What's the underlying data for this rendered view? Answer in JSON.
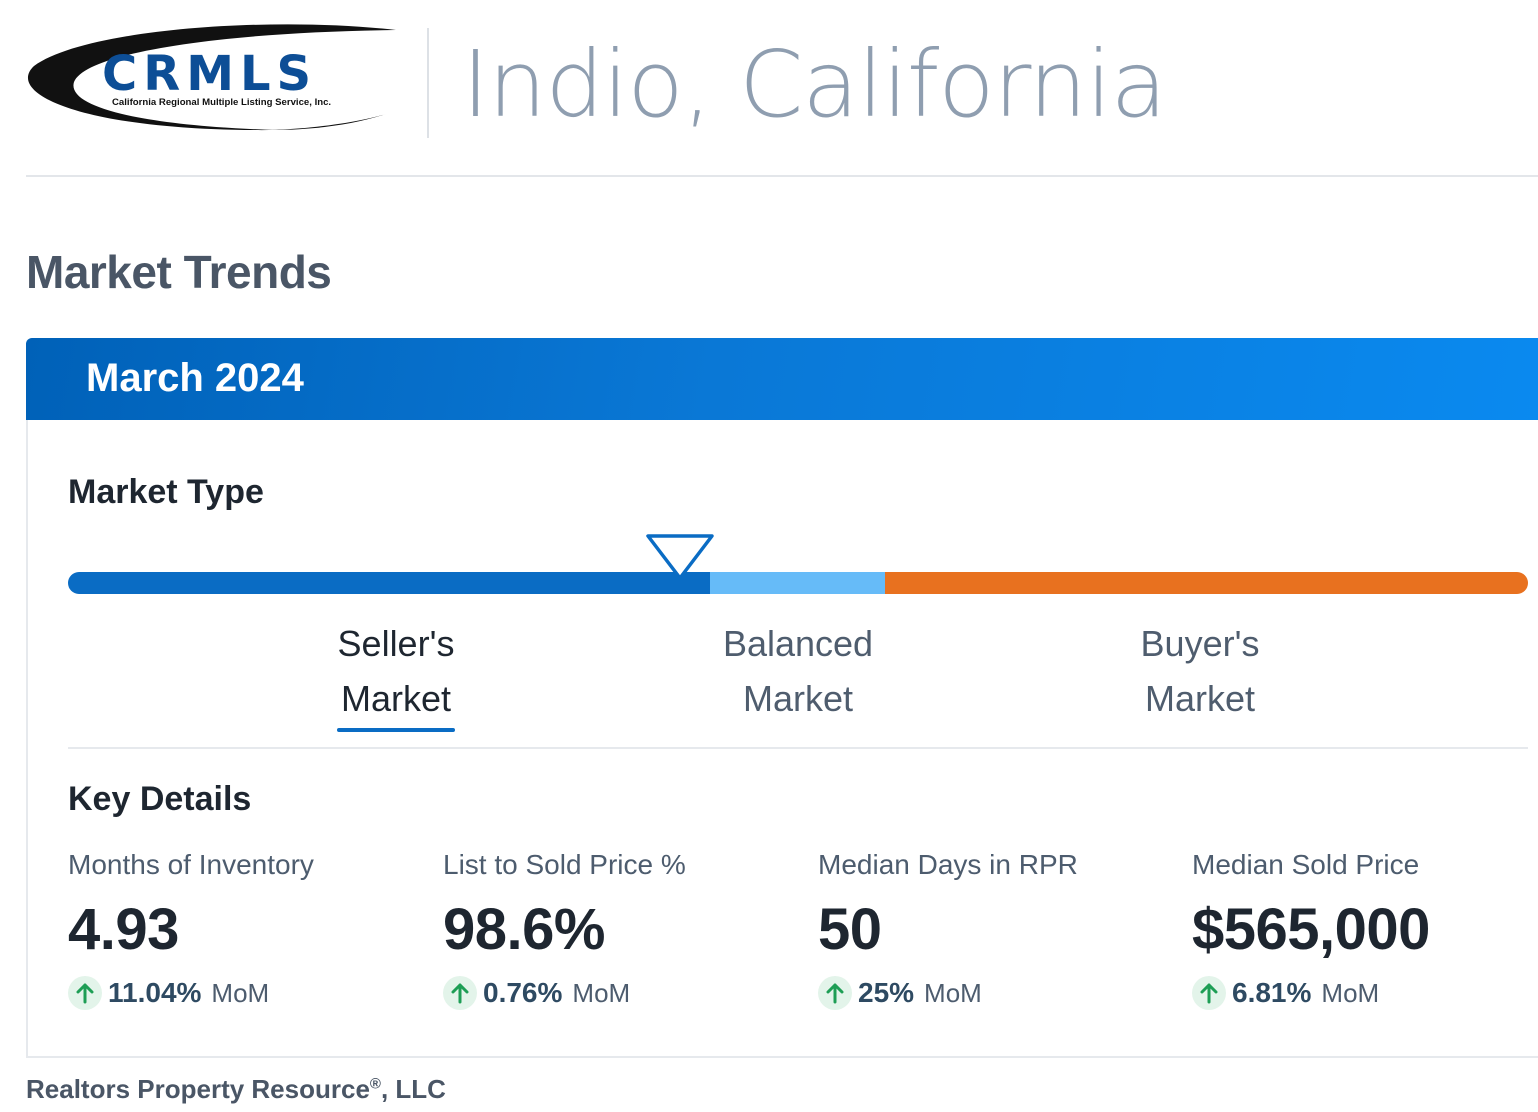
{
  "header": {
    "logo_text": "CRMLS",
    "logo_subtitle": "California Regional Multiple Listing Service, Inc.",
    "city_title": "Indio, California"
  },
  "section_title": "Market Trends",
  "card": {
    "period": "March 2024",
    "market_type": {
      "heading": "Market Type",
      "indicator_position_fraction": 0.44,
      "segments": [
        {
          "name": "Seller's Market",
          "color": "#0a6cc4"
        },
        {
          "name": "Balanced Market",
          "color": "#66bbf8"
        },
        {
          "name": "Buyer's Market",
          "color": "#e8711f"
        }
      ],
      "labels": {
        "seller_line1": "Seller's",
        "seller_line2": "Market",
        "balanced_line1": "Balanced",
        "balanced_line2": "Market",
        "buyer_line1": "Buyer's",
        "buyer_line2": "Market"
      },
      "active": "Seller's Market"
    },
    "key_details": {
      "heading": "Key Details",
      "metrics": [
        {
          "label": "Months of Inventory",
          "value": "4.93",
          "change": "11.04%",
          "unit": "MoM",
          "direction": "up"
        },
        {
          "label": "List to Sold Price %",
          "value": "98.6%",
          "change": "0.76%",
          "unit": "MoM",
          "direction": "up"
        },
        {
          "label": "Median Days in RPR",
          "value": "50",
          "change": "25%",
          "unit": "MoM",
          "direction": "up"
        },
        {
          "label": "Median Sold Price",
          "value": "$565,000",
          "change": "6.81%",
          "unit": "MoM",
          "direction": "up"
        }
      ]
    }
  },
  "footer": {
    "company": "Realtors Property Resource",
    "registered": "®",
    "suffix": ", LLC"
  },
  "colors": {
    "accent_blue": "#0a6cc4",
    "positive_green": "#1e9e55",
    "title_gray": "#8f9eb0"
  }
}
